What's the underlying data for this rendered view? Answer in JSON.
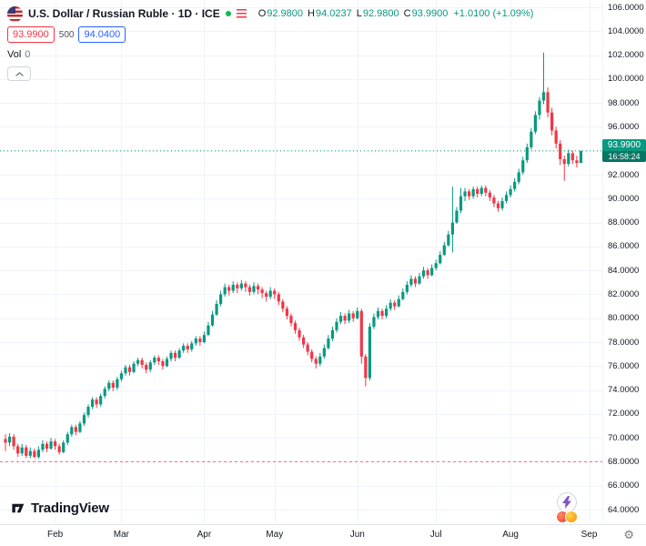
{
  "legend": {
    "symbol_title": "U.S. Dollar / Russian Ruble · 1D · ICE",
    "ohlc": {
      "open_label": "O",
      "open": "92.9800",
      "high_label": "H",
      "high": "94.0237",
      "low_label": "L",
      "low": "92.9800",
      "close_label": "C",
      "close": "93.9900",
      "change": "+1.0100 (+1.09%)"
    },
    "bid": "93.9900",
    "spread": "500",
    "ask": "94.0400",
    "volume_label": "Vol",
    "volume_value": "0"
  },
  "price_label": {
    "price": "93.9900",
    "countdown": "16:58:24"
  },
  "logo_text": "TradingView",
  "colors": {
    "up": "#089981",
    "down": "#f23645",
    "accent_blue": "#2962ff",
    "text": "#131722",
    "muted": "#787b86",
    "grid": "#f0f3fa",
    "axis_border": "#e0e3eb",
    "tag_bg": "#089981",
    "tag_countdown_bg": "#077563",
    "status_green": "#0bbd4c"
  },
  "chart_data": {
    "type": "candlestick",
    "title": "U.S. Dollar / Russian Ruble",
    "timeframe": "1D",
    "exchange": "ICE",
    "y_axis": {
      "min": 64,
      "max": 106,
      "step": 2
    },
    "y_tick_labels": [
      "106.0000",
      "104.0000",
      "102.0000",
      "100.0000",
      "98.0000",
      "96.0000",
      "94.0000",
      "92.0000",
      "90.0000",
      "88.0000",
      "86.0000",
      "84.0000",
      "82.0000",
      "80.0000",
      "78.0000",
      "76.0000",
      "74.0000",
      "72.0000",
      "70.0000",
      "68.0000",
      "66.0000",
      "64.0000"
    ],
    "x_tick_labels": [
      {
        "label": "Feb",
        "candle_index": 12
      },
      {
        "label": "Mar",
        "candle_index": 28
      },
      {
        "label": "Apr",
        "candle_index": 48
      },
      {
        "label": "May",
        "candle_index": 65
      },
      {
        "label": "Jun",
        "candle_index": 85
      },
      {
        "label": "Jul",
        "candle_index": 104
      },
      {
        "label": "Aug",
        "candle_index": 122
      },
      {
        "label": "Sep",
        "candle_index": 141
      }
    ],
    "levels": {
      "current_price": 93.99,
      "dashed_low": 68.0
    },
    "last_ohlc": {
      "open": 92.98,
      "high": 94.0237,
      "low": 92.98,
      "close": 93.99
    },
    "candles": [
      [
        69.9,
        70.3,
        68.9,
        69.6
      ],
      [
        69.6,
        70.4,
        69.3,
        70.1
      ],
      [
        70.1,
        70.3,
        69.0,
        69.3
      ],
      [
        69.3,
        69.5,
        68.4,
        68.7
      ],
      [
        68.7,
        69.5,
        68.5,
        69.2
      ],
      [
        69.2,
        69.4,
        68.3,
        68.5
      ],
      [
        68.5,
        69.2,
        68.3,
        68.9
      ],
      [
        68.9,
        69.1,
        68.3,
        68.4
      ],
      [
        68.4,
        69.3,
        68.25,
        69.0
      ],
      [
        69.0,
        69.8,
        68.8,
        69.5
      ],
      [
        69.5,
        69.7,
        68.8,
        69.1
      ],
      [
        69.1,
        70.0,
        69.0,
        69.7
      ],
      [
        69.7,
        69.9,
        69.0,
        69.3
      ],
      [
        69.3,
        69.5,
        68.6,
        68.8
      ],
      [
        68.8,
        69.8,
        68.7,
        69.6
      ],
      [
        69.6,
        70.5,
        69.4,
        70.3
      ],
      [
        70.3,
        71.1,
        70.1,
        70.9
      ],
      [
        70.9,
        71.1,
        70.2,
        70.5
      ],
      [
        70.5,
        71.4,
        70.4,
        71.2
      ],
      [
        71.2,
        72.1,
        71.0,
        71.9
      ],
      [
        71.9,
        72.8,
        71.7,
        72.6
      ],
      [
        72.6,
        73.4,
        72.4,
        73.2
      ],
      [
        73.2,
        73.4,
        72.5,
        72.8
      ],
      [
        72.8,
        73.7,
        72.6,
        73.5
      ],
      [
        73.5,
        74.3,
        73.3,
        74.1
      ],
      [
        74.1,
        74.8,
        73.9,
        74.6
      ],
      [
        74.6,
        74.8,
        73.9,
        74.2
      ],
      [
        74.2,
        75.1,
        74.0,
        74.9
      ],
      [
        74.9,
        75.6,
        74.7,
        75.4
      ],
      [
        75.4,
        76.1,
        75.2,
        75.9
      ],
      [
        75.9,
        76.1,
        75.2,
        75.5
      ],
      [
        75.5,
        76.4,
        75.4,
        76.2
      ],
      [
        76.2,
        76.7,
        76.0,
        76.5
      ],
      [
        76.5,
        76.7,
        75.8,
        76.1
      ],
      [
        76.1,
        76.3,
        75.4,
        75.7
      ],
      [
        75.7,
        76.5,
        75.5,
        76.3
      ],
      [
        76.3,
        76.9,
        76.1,
        76.7
      ],
      [
        76.7,
        76.9,
        76.1,
        76.4
      ],
      [
        76.4,
        76.6,
        75.7,
        76.0
      ],
      [
        76.0,
        76.8,
        75.9,
        76.6
      ],
      [
        76.6,
        77.3,
        76.4,
        77.1
      ],
      [
        77.1,
        77.3,
        76.4,
        76.7
      ],
      [
        76.7,
        77.5,
        76.6,
        77.3
      ],
      [
        77.3,
        77.9,
        77.1,
        77.7
      ],
      [
        77.7,
        77.9,
        77.1,
        77.4
      ],
      [
        77.4,
        78.1,
        77.2,
        77.9
      ],
      [
        77.9,
        78.5,
        77.7,
        78.3
      ],
      [
        78.3,
        78.5,
        77.7,
        78.0
      ],
      [
        78.0,
        78.9,
        77.9,
        78.6
      ],
      [
        78.6,
        79.7,
        78.5,
        79.4
      ],
      [
        79.4,
        80.6,
        79.3,
        80.3
      ],
      [
        80.3,
        81.5,
        80.2,
        81.2
      ],
      [
        81.2,
        82.3,
        81.0,
        82.0
      ],
      [
        82.0,
        82.9,
        81.8,
        82.6
      ],
      [
        82.6,
        82.8,
        81.9,
        82.3
      ],
      [
        82.3,
        83.1,
        82.1,
        82.8
      ],
      [
        82.8,
        83.0,
        82.1,
        82.5
      ],
      [
        82.5,
        83.2,
        82.3,
        82.9
      ],
      [
        82.9,
        83.1,
        82.2,
        82.6
      ],
      [
        82.6,
        82.8,
        81.9,
        82.2
      ],
      [
        82.2,
        83.0,
        82.0,
        82.7
      ],
      [
        82.7,
        82.9,
        82.0,
        82.4
      ],
      [
        82.4,
        82.6,
        81.7,
        82.1
      ],
      [
        82.1,
        82.3,
        81.4,
        81.8
      ],
      [
        81.8,
        82.6,
        81.6,
        82.3
      ],
      [
        82.3,
        82.5,
        81.6,
        82.0
      ],
      [
        82.0,
        82.2,
        81.1,
        81.4
      ],
      [
        81.4,
        81.6,
        80.5,
        80.8
      ],
      [
        80.8,
        81.0,
        79.9,
        80.2
      ],
      [
        80.2,
        80.4,
        79.3,
        79.6
      ],
      [
        79.6,
        79.8,
        78.7,
        79.0
      ],
      [
        79.0,
        79.2,
        78.1,
        78.4
      ],
      [
        78.4,
        78.6,
        77.5,
        77.8
      ],
      [
        77.8,
        78.0,
        76.9,
        77.2
      ],
      [
        77.2,
        77.4,
        76.3,
        76.6
      ],
      [
        76.6,
        76.8,
        75.8,
        76.2
      ],
      [
        76.2,
        77.1,
        76.0,
        76.8
      ],
      [
        76.8,
        77.8,
        76.6,
        77.5
      ],
      [
        77.5,
        78.6,
        77.4,
        78.3
      ],
      [
        78.3,
        79.3,
        78.1,
        79.0
      ],
      [
        79.0,
        80.0,
        78.8,
        79.7
      ],
      [
        79.7,
        80.5,
        79.5,
        80.2
      ],
      [
        80.2,
        80.4,
        79.5,
        79.8
      ],
      [
        79.8,
        80.7,
        79.6,
        80.4
      ],
      [
        80.4,
        80.6,
        79.7,
        80.0
      ],
      [
        80.0,
        80.9,
        79.9,
        80.6
      ],
      [
        80.6,
        80.8,
        76.2,
        76.8
      ],
      [
        76.8,
        77.0,
        74.3,
        75.0
      ],
      [
        75.0,
        79.6,
        74.8,
        79.3
      ],
      [
        79.3,
        80.4,
        79.1,
        80.1
      ],
      [
        80.1,
        80.9,
        79.9,
        80.6
      ],
      [
        80.6,
        80.8,
        79.9,
        80.2
      ],
      [
        80.2,
        81.1,
        80.0,
        80.8
      ],
      [
        80.8,
        81.6,
        80.6,
        81.3
      ],
      [
        81.3,
        81.5,
        80.7,
        81.0
      ],
      [
        81.0,
        81.9,
        80.9,
        81.6
      ],
      [
        81.6,
        82.5,
        81.5,
        82.2
      ],
      [
        82.2,
        83.1,
        82.0,
        82.8
      ],
      [
        82.8,
        83.6,
        82.6,
        83.3
      ],
      [
        83.3,
        83.5,
        82.6,
        82.9
      ],
      [
        82.9,
        83.8,
        82.8,
        83.5
      ],
      [
        83.5,
        84.3,
        83.3,
        84.0
      ],
      [
        84.0,
        84.2,
        83.3,
        83.6
      ],
      [
        83.6,
        84.5,
        83.5,
        84.2
      ],
      [
        84.2,
        84.9,
        84.0,
        84.6
      ],
      [
        84.6,
        85.6,
        84.5,
        85.3
      ],
      [
        85.3,
        86.4,
        85.2,
        86.1
      ],
      [
        86.1,
        87.3,
        86.0,
        87.0
      ],
      [
        87.0,
        91.0,
        85.5,
        88.0
      ],
      [
        88.0,
        89.3,
        87.9,
        89.0
      ],
      [
        89.0,
        90.9,
        88.8,
        90.2
      ],
      [
        90.2,
        90.9,
        89.8,
        90.6
      ],
      [
        90.6,
        90.8,
        89.9,
        90.2
      ],
      [
        90.2,
        91.0,
        90.0,
        90.8
      ],
      [
        90.8,
        91.0,
        90.1,
        90.4
      ],
      [
        90.4,
        91.1,
        90.2,
        90.9
      ],
      [
        90.9,
        91.1,
        90.2,
        90.5
      ],
      [
        90.5,
        90.7,
        89.8,
        90.1
      ],
      [
        90.1,
        90.3,
        89.3,
        89.6
      ],
      [
        89.6,
        89.8,
        88.9,
        89.2
      ],
      [
        89.2,
        90.1,
        89.0,
        89.8
      ],
      [
        89.8,
        90.6,
        89.6,
        90.3
      ],
      [
        90.3,
        91.1,
        90.1,
        90.8
      ],
      [
        90.8,
        91.7,
        90.6,
        91.4
      ],
      [
        91.4,
        92.5,
        91.2,
        92.2
      ],
      [
        92.2,
        93.5,
        92.0,
        93.2
      ],
      [
        93.2,
        94.6,
        93.0,
        94.3
      ],
      [
        94.3,
        95.9,
        94.1,
        95.6
      ],
      [
        95.6,
        97.3,
        95.4,
        97.0
      ],
      [
        97.0,
        98.5,
        96.6,
        98.2
      ],
      [
        98.2,
        102.2,
        97.9,
        98.9
      ],
      [
        98.9,
        99.3,
        96.8,
        97.2
      ],
      [
        97.2,
        97.6,
        95.3,
        95.7
      ],
      [
        95.7,
        96.0,
        94.2,
        94.6
      ],
      [
        94.6,
        94.9,
        92.8,
        93.3
      ],
      [
        93.3,
        93.6,
        91.5,
        92.9
      ],
      [
        92.9,
        94.1,
        92.7,
        93.8
      ],
      [
        93.8,
        94.0,
        92.9,
        93.2
      ],
      [
        93.2,
        93.6,
        92.6,
        92.98
      ],
      [
        92.98,
        94.0237,
        92.98,
        93.99
      ]
    ]
  }
}
